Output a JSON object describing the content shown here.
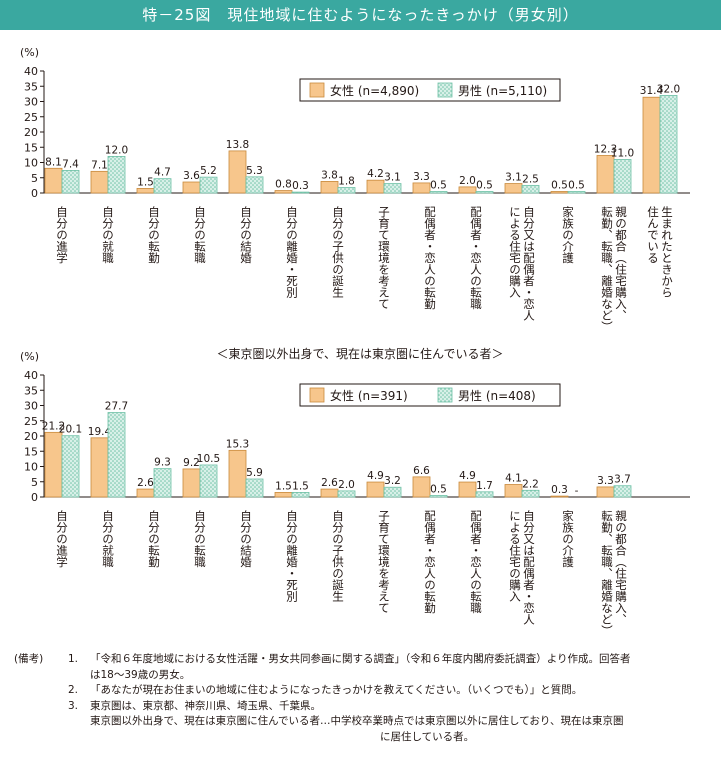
{
  "title": "特－25図　現住地域に住むようになったきっかけ（男女別）",
  "colors": {
    "female": "#f7c68c",
    "female_stroke": "#c98a3c",
    "male": "#d8f0e8",
    "male_dot": "#6fc1a6",
    "axis": "#231815",
    "title_bg": "#3aa8a0"
  },
  "chart_data": [
    {
      "type": "bar",
      "unit_label": "(%)",
      "ylim": [
        0,
        40
      ],
      "yticks": [
        0,
        5,
        10,
        15,
        20,
        25,
        30,
        35,
        40
      ],
      "legend_position": "top-right",
      "categories": [
        "自分の進学",
        "自分の就職",
        "自分の転勤",
        "自分の転職",
        "自分の結婚",
        "自分の離婚・死別",
        "自分の子供の誕生",
        "子育て環境を考えて",
        "配偶者・恋人の転勤",
        "配偶者・恋人の転職",
        "自分又は配偶者・恋人による住宅の購入",
        "家族の介護",
        "親の都合（住宅購入、転勤、転職、離婚など）",
        "住んでいる生まれたときから"
      ],
      "category_lines": [
        [
          "自分の進学"
        ],
        [
          "自分の就職"
        ],
        [
          "自分の転勤"
        ],
        [
          "自分の転職"
        ],
        [
          "自分の結婚"
        ],
        [
          "自分の離婚・死別"
        ],
        [
          "自分の子供の誕生"
        ],
        [
          "子育て環境を考えて"
        ],
        [
          "配偶者・恋人の転勤"
        ],
        [
          "配偶者・恋人の転職"
        ],
        [
          "による住宅の購入",
          "自分又は配偶者・恋人"
        ],
        [
          "家族の介護"
        ],
        [
          "転勤、転職、離婚など）",
          "親の都合（住宅購入、"
        ],
        [
          "住んでいる",
          "生まれたときから"
        ]
      ],
      "series": [
        {
          "name": "女性 (n=4,890)",
          "values": [
            8.1,
            7.1,
            1.5,
            3.6,
            13.8,
            0.8,
            3.8,
            4.2,
            3.3,
            2.0,
            3.1,
            0.5,
            12.3,
            31.4
          ],
          "labels": [
            "8.1",
            "7.1",
            "1.5",
            "3.6",
            "13.8",
            "0.8",
            "3.8",
            "4.2",
            "3.3",
            "2.0",
            "3.1",
            "0.5",
            "12.3",
            "31.4"
          ]
        },
        {
          "name": "男性 (n=5,110)",
          "values": [
            7.4,
            12.0,
            4.7,
            5.2,
            5.3,
            0.3,
            1.8,
            3.1,
            0.5,
            0.5,
            2.5,
            0.5,
            11.0,
            32.0
          ],
          "labels": [
            "7.4",
            "12.0",
            "4.7",
            "5.2",
            "5.3",
            "0.3",
            "1.8",
            "3.1",
            "0.5",
            "0.5",
            "2.5",
            "0.5",
            "11.0",
            "32.0"
          ]
        }
      ]
    },
    {
      "type": "bar",
      "unit_label": "(%)",
      "subtitle": "＜東京圏以外出身で、現在は東京圏に住んでいる者＞",
      "ylim": [
        0,
        40
      ],
      "yticks": [
        0,
        5,
        10,
        15,
        20,
        25,
        30,
        35,
        40
      ],
      "legend_position": "top-right",
      "categories": [
        "自分の進学",
        "自分の就職",
        "自分の転勤",
        "自分の転職",
        "自分の結婚",
        "自分の離婚・死別",
        "自分の子供の誕生",
        "子育て環境を考えて",
        "配偶者・恋人の転勤",
        "配偶者・恋人の転職",
        "自分又は配偶者・恋人による住宅の購入",
        "家族の介護",
        "親の都合（住宅購入、転勤、転職、離婚など）"
      ],
      "category_lines": [
        [
          "自分の進学"
        ],
        [
          "自分の就職"
        ],
        [
          "自分の転勤"
        ],
        [
          "自分の転職"
        ],
        [
          "自分の結婚"
        ],
        [
          "自分の離婚・死別"
        ],
        [
          "自分の子供の誕生"
        ],
        [
          "子育て環境を考えて"
        ],
        [
          "配偶者・恋人の転勤"
        ],
        [
          "配偶者・恋人の転職"
        ],
        [
          "による住宅の購入",
          "自分又は配偶者・恋人"
        ],
        [
          "家族の介護"
        ],
        [
          "転勤、転職、離婚など）",
          "親の都合（住宅購入、"
        ]
      ],
      "series": [
        {
          "name": "女性 (n=391)",
          "values": [
            21.2,
            19.4,
            2.6,
            9.2,
            15.3,
            1.5,
            2.6,
            4.9,
            6.6,
            4.9,
            4.1,
            0.3,
            3.3
          ],
          "labels": [
            "21.2",
            "19.4",
            "2.6",
            "9.2",
            "15.3",
            "1.5",
            "2.6",
            "4.9",
            "6.6",
            "4.9",
            "4.1",
            "0.3",
            "3.3"
          ]
        },
        {
          "name": "男性 (n=408)",
          "values": [
            20.1,
            27.7,
            9.3,
            10.5,
            5.9,
            1.5,
            2.0,
            3.2,
            0.5,
            1.7,
            2.2,
            0,
            3.7
          ],
          "labels": [
            "20.1",
            "27.7",
            "9.3",
            "10.5",
            "5.9",
            "1.5",
            "2.0",
            "3.2",
            "0.5",
            "1.7",
            "2.2",
            "-",
            "3.7"
          ]
        }
      ]
    }
  ],
  "notes": {
    "label": "(備考)",
    "items": [
      {
        "num": "1.",
        "lines": [
          "「令和６年度地域における女性活躍・男女共同参画に関する調査」（令和６年度内閣府委託調査）より作成。回答者",
          "は18～39歳の男女。"
        ]
      },
      {
        "num": "2.",
        "lines": [
          "「あなたが現在お住まいの地域に住むようになったきっかけを教えてください。（いくつでも）」と質問。"
        ]
      },
      {
        "num": "3.",
        "lines": [
          "東京圏は、東京都、神奈川県、埼玉県、千葉県。",
          "東京圏以外出身で、現在は東京圏に住んでいる者…中学校卒業時点では東京圏以外に居住しており、現在は東京圏",
          "に居住している者。"
        ]
      }
    ]
  }
}
